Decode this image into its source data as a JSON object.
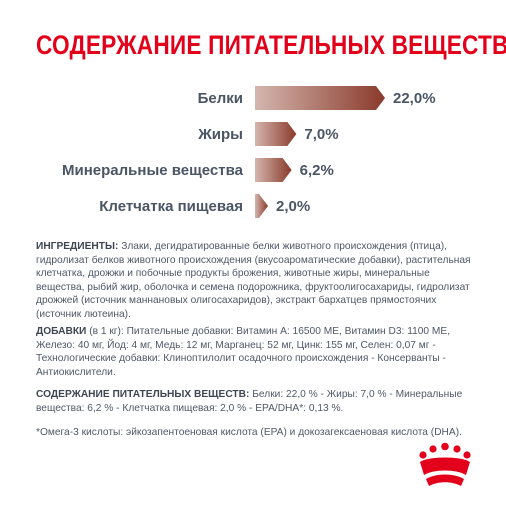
{
  "header": {
    "title": "СОДЕРЖАНИЕ ПИТАТЕЛЬНЫХ ВЕЩЕСТВ"
  },
  "chart_data": {
    "type": "bar",
    "categories": [
      "Белки",
      "Жиры",
      "Минеральные вещества",
      "Клетчатка пищевая"
    ],
    "values": [
      22.0,
      7.0,
      6.2,
      2.0
    ],
    "value_labels": [
      "22,0%",
      "7,0%",
      "6,2%",
      "2,0%"
    ],
    "title": "СОДЕРЖАНИЕ ПИТАТЕЛЬНЫХ ВЕЩЕСТВ",
    "xlabel": "",
    "ylabel": "",
    "xlim": [
      0,
      22.0
    ],
    "orientation": "horizontal",
    "grid": false,
    "colors": {
      "bar_start": "#d4b6ae",
      "bar_end": "#8a3a2b",
      "title": "#e2001a",
      "text": "#4a5565"
    }
  },
  "ingredients": {
    "head": "ИНГРЕДИЕНТЫ:",
    "text": " Злаки, дегидратированные белки животного происхождения (птица), гидролизат белков животного происхождения (вкусоароматические добавки), растительная клетчатка, дрожжи и побочные продукты брожения, животные жиры, минеральные вещества, рыбий жир, оболочка и семена подорожника, фруктоолигосахариды, гидролизат дрожжей (источник маннановых олигосахаридов), экстракт бархатцев прямостоячих (источник лютеина)."
  },
  "additives": {
    "head": "ДОБАВКИ",
    "text": " (в 1 кг): Питательные добавки: Витамин А: 16500 МЕ, Витамин D3: 1100 МЕ, Железо: 40 мг, Йод: 4 мг, Медь: 12 мг, Марганец: 52 мг, Цинк: 155 мг, Селен: 0,07 мг - Технологические добавки: Клиноптилолит осадочного происхождения - Консерванты - Антиокислители."
  },
  "analysis": {
    "head": "СОДЕРЖАНИЕ ПИТАТЕЛЬНЫХ ВЕЩЕСТВ:",
    "text": " Белки: 22,0 % - Жиры: 7,0 % - Минеральные вещества: 6,2 % - Клетчатка пищевая: 2,0 % - EPA/DHA*: 0,13 %."
  },
  "footnote": {
    "text": "*Омега-3 кислоты: эйкозапентоеновая кислота (EPA) и докозагексаеновая кислота (DHA)."
  },
  "logo": {
    "icon": "royal-canin-crown-icon",
    "color": "#e2001a"
  }
}
